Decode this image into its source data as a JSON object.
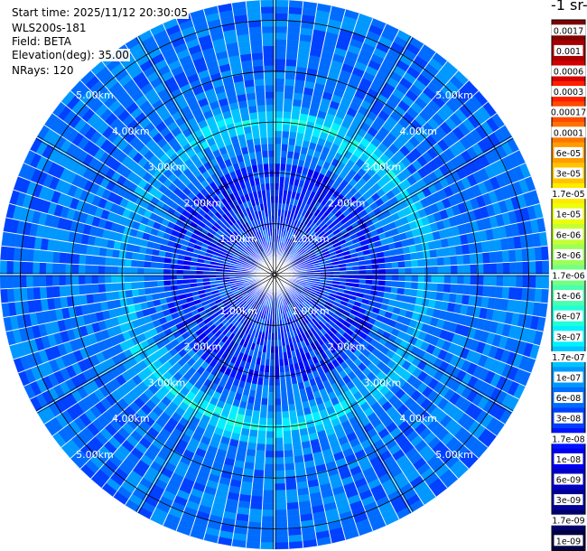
{
  "info": {
    "start_time": "Start time: 2025/11/12 20:30:05",
    "instrument": "WLS200s-181",
    "field": "Field: BETA",
    "elevation": "Elevation(deg): 35.00",
    "nrays": "NRays: 120"
  },
  "colorbar": {
    "title": "-1 sr-",
    "labels": [
      "0.0017",
      "0.001",
      "0.0006",
      "0.0003",
      "0.00017",
      "0.0001",
      "6e-05",
      "3e-05",
      "1.7e-05",
      "1e-05",
      "6e-06",
      "3e-06",
      "1.7e-06",
      "1e-06",
      "6e-07",
      "3e-07",
      "1.7e-07",
      "1e-07",
      "6e-08",
      "3e-08",
      "1.7e-08",
      "1e-08",
      "6e-09",
      "3e-09",
      "1.7e-09",
      "1e-09"
    ],
    "colors": [
      "#7f0000",
      "#a80000",
      "#d40000",
      "#ff1e00",
      "#ff4a00",
      "#ff7400",
      "#ff9c00",
      "#ffc400",
      "#ffea00",
      "#eaff0d",
      "#c4ff33",
      "#9cff5a",
      "#74ff83",
      "#4affad",
      "#1effd8",
      "#00f0ff",
      "#00c4ff",
      "#0098ff",
      "#006cff",
      "#0040ff",
      "#0014ff",
      "#0000f1",
      "#0000c4",
      "#000098",
      "#00006c",
      "#000040"
    ]
  },
  "chart_data": {
    "type": "polar_ppi",
    "field": "BETA",
    "elevation_deg": 35.0,
    "n_rays": 120,
    "max_range_km": 5.4,
    "range_ring_labels": [
      "1.00km",
      "2.00km",
      "3.00km",
      "4.00km",
      "5.00km"
    ],
    "range_rings_km": [
      1,
      2,
      3,
      4,
      5
    ],
    "colorbar_scale": "log",
    "colorbar_range": [
      1e-09,
      0.0017
    ],
    "feature_ring_km": 3.0,
    "feature_ring_peak": 2.5e-07
  }
}
